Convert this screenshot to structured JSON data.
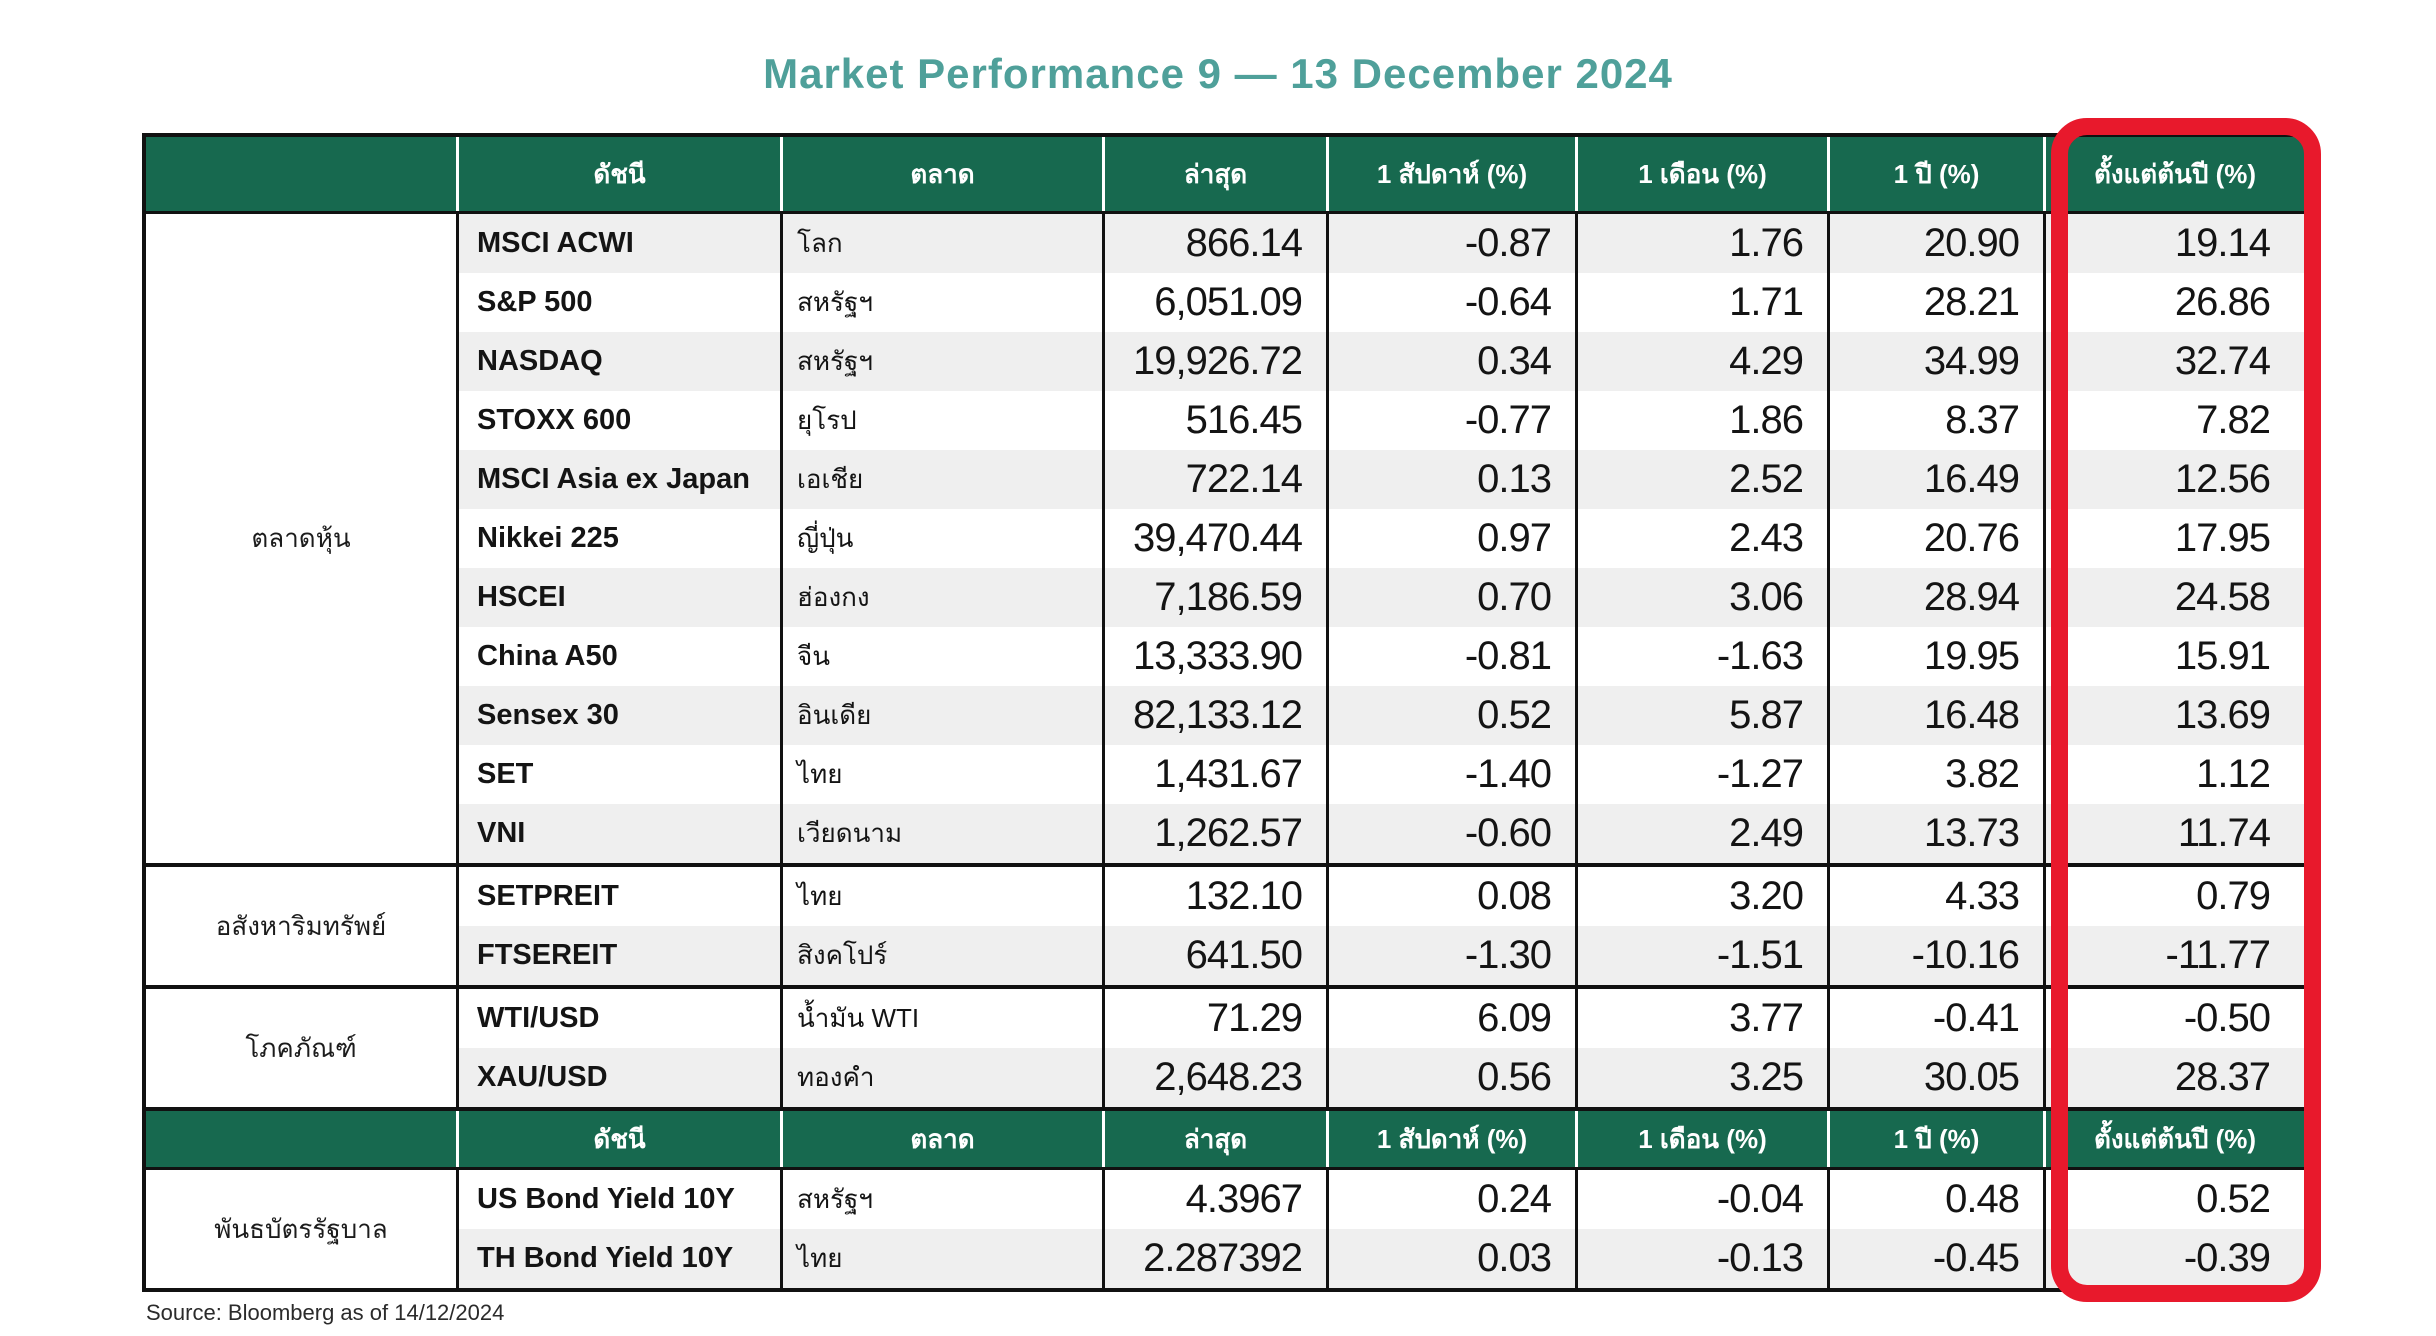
{
  "title": "Market Performance 9 — 13 December 2024",
  "source_note": "Source: Bloomberg as of 14/12/2024",
  "colors": {
    "header_green": "#17694F",
    "title_teal": "#4FA09A",
    "row_alt_gray": "#EFEFEF",
    "highlight_red": "#E8192C",
    "border_black": "#111111"
  },
  "column_headers": [
    "ดัชนี",
    "ตลาด",
    "ล่าสุด",
    "1 สัปดาห์ (%)",
    "1 เดือน (%)",
    "1 ปี (%)",
    "ตั้งแต่ต้นปี (%)"
  ],
  "sections": [
    {
      "category": "ตลาดหุ้น",
      "rows": [
        [
          "MSCI ACWI",
          "โลก",
          "866.14",
          "-0.87",
          "1.76",
          "20.90",
          "19.14"
        ],
        [
          "S&P 500",
          "สหรัฐฯ",
          "6,051.09",
          "-0.64",
          "1.71",
          "28.21",
          "26.86"
        ],
        [
          "NASDAQ",
          "สหรัฐฯ",
          "19,926.72",
          "0.34",
          "4.29",
          "34.99",
          "32.74"
        ],
        [
          "STOXX 600",
          "ยุโรป",
          "516.45",
          "-0.77",
          "1.86",
          "8.37",
          "7.82"
        ],
        [
          "MSCI Asia ex Japan",
          "เอเชีย",
          "722.14",
          "0.13",
          "2.52",
          "16.49",
          "12.56"
        ],
        [
          "Nikkei 225",
          "ญี่ปุ่น",
          "39,470.44",
          "0.97",
          "2.43",
          "20.76",
          "17.95"
        ],
        [
          "HSCEI",
          "ฮ่องกง",
          "7,186.59",
          "0.70",
          "3.06",
          "28.94",
          "24.58"
        ],
        [
          "China A50",
          "จีน",
          "13,333.90",
          "-0.81",
          "-1.63",
          "19.95",
          "15.91"
        ],
        [
          "Sensex 30",
          "อินเดีย",
          "82,133.12",
          "0.52",
          "5.87",
          "16.48",
          "13.69"
        ],
        [
          "SET",
          "ไทย",
          "1,431.67",
          "-1.40",
          "-1.27",
          "3.82",
          "1.12"
        ],
        [
          "VNI",
          "เวียดนาม",
          "1,262.57",
          "-0.60",
          "2.49",
          "13.73",
          "11.74"
        ]
      ]
    },
    {
      "category": "อสังหาริมทรัพย์",
      "rows": [
        [
          "SETPREIT",
          "ไทย",
          "132.10",
          "0.08",
          "3.20",
          "4.33",
          "0.79"
        ],
        [
          "FTSEREIT",
          "สิงคโปร์",
          "641.50",
          "-1.30",
          "-1.51",
          "-10.16",
          "-11.77"
        ]
      ]
    },
    {
      "category": "โภคภัณฑ์",
      "rows": [
        [
          "WTI/USD",
          "น้ำมัน WTI",
          "71.29",
          "6.09",
          "3.77",
          "-0.41",
          "-0.50"
        ],
        [
          "XAU/USD",
          "ทองคำ",
          "2,648.23",
          "0.56",
          "3.25",
          "30.05",
          "28.37"
        ]
      ]
    },
    {
      "category": "พันธบัตรรัฐบาล",
      "header_before": true,
      "rows": [
        [
          "US Bond Yield 10Y",
          "สหรัฐฯ",
          "4.3967",
          "0.24",
          "-0.04",
          "0.48",
          "0.52"
        ],
        [
          "TH Bond Yield 10Y",
          "ไทย",
          "2.287392",
          "0.03",
          "-0.13",
          "-0.45",
          "-0.39"
        ]
      ]
    }
  ]
}
